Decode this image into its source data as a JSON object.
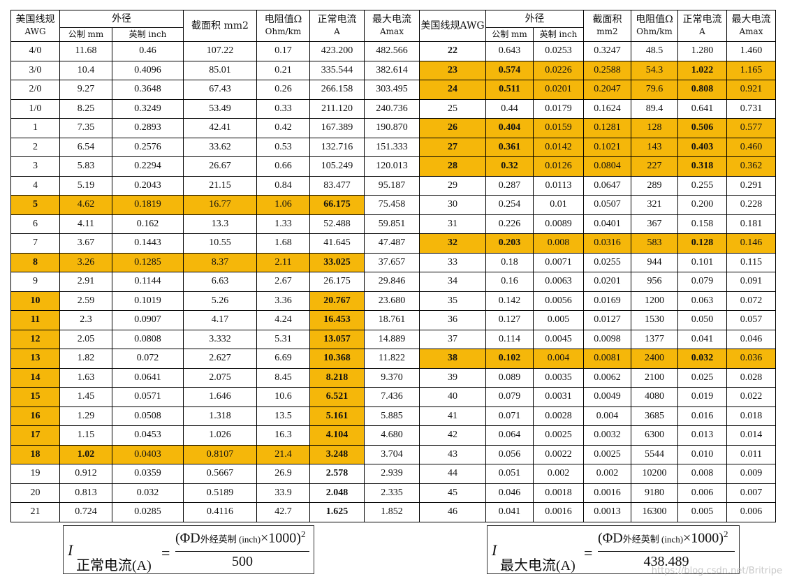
{
  "header": {
    "awg": [
      "美国线规",
      "AWG"
    ],
    "od": "外径",
    "metric": "公制 mm",
    "imperial": "英制 inch",
    "area": "截面积 mm2",
    "resistance": [
      "电阻值Ω",
      "Ohm/km"
    ],
    "current": [
      "正常电流",
      "A"
    ],
    "max": [
      "最大电流",
      "Amax"
    ],
    "awg_r": "美国线规AWG",
    "od_r": "外径",
    "metric_r": "公制 mm",
    "imperial_r": "英制 inch",
    "area_r": [
      "截面积",
      "mm2"
    ],
    "resistance_r": [
      "电阻值Ω",
      "Ohm/km"
    ],
    "current_r": [
      "正常电流",
      "A"
    ],
    "max_r": [
      "最大电流",
      "Amax"
    ]
  },
  "highlight_color": "#f5b70a",
  "table": {
    "rows": [
      [
        "4/0",
        "11.68",
        "0.46",
        "107.22",
        "0.17",
        "423.200",
        "482.566",
        {
          "text": "22",
          "bold": true
        },
        "0.643",
        "0.0253",
        "0.3247",
        "48.5",
        "1.280",
        "1.460"
      ],
      [
        "3/0",
        "10.4",
        "0.4096",
        "85.01",
        "0.21",
        "335.544",
        "382.614",
        {
          "text": "23",
          "bold": true,
          "highlight": true
        },
        {
          "text": "0.574",
          "bold": true,
          "highlight": true
        },
        {
          "text": "0.0226",
          "highlight": true
        },
        {
          "text": "0.2588",
          "highlight": true
        },
        {
          "text": "54.3",
          "highlight": true
        },
        {
          "text": "1.022",
          "bold": true,
          "highlight": true
        },
        {
          "text": "1.165",
          "highlight": true
        }
      ],
      [
        "2/0",
        "9.27",
        "0.3648",
        "67.43",
        "0.26",
        "266.158",
        "303.495",
        {
          "text": "24",
          "bold": true,
          "highlight": true
        },
        {
          "text": "0.511",
          "bold": true,
          "highlight": true
        },
        {
          "text": "0.0201",
          "highlight": true
        },
        {
          "text": "0.2047",
          "highlight": true
        },
        {
          "text": "79.6",
          "highlight": true
        },
        {
          "text": "0.808",
          "bold": true,
          "highlight": true
        },
        {
          "text": "0.921",
          "highlight": true
        }
      ],
      [
        "1/0",
        "8.25",
        "0.3249",
        "53.49",
        "0.33",
        "211.120",
        "240.736",
        "25",
        "0.44",
        "0.0179",
        "0.1624",
        "89.4",
        "0.641",
        "0.731"
      ],
      [
        "1",
        "7.35",
        "0.2893",
        "42.41",
        "0.42",
        "167.389",
        "190.870",
        {
          "text": "26",
          "bold": true,
          "highlight": true
        },
        {
          "text": "0.404",
          "bold": true,
          "highlight": true
        },
        {
          "text": "0.0159",
          "highlight": true
        },
        {
          "text": "0.1281",
          "highlight": true
        },
        {
          "text": "128",
          "highlight": true
        },
        {
          "text": "0.506",
          "bold": true,
          "highlight": true
        },
        {
          "text": "0.577",
          "highlight": true
        }
      ],
      [
        "2",
        "6.54",
        "0.2576",
        "33.62",
        "0.53",
        "132.716",
        "151.333",
        {
          "text": "27",
          "bold": true,
          "highlight": true
        },
        {
          "text": "0.361",
          "bold": true,
          "highlight": true
        },
        {
          "text": "0.0142",
          "highlight": true
        },
        {
          "text": "0.1021",
          "highlight": true
        },
        {
          "text": "143",
          "highlight": true
        },
        {
          "text": "0.403",
          "bold": true,
          "highlight": true
        },
        {
          "text": "0.460",
          "highlight": true
        }
      ],
      [
        "3",
        "5.83",
        "0.2294",
        "26.67",
        "0.66",
        "105.249",
        "120.013",
        {
          "text": "28",
          "bold": true,
          "highlight": true
        },
        {
          "text": "0.32",
          "bold": true,
          "highlight": true
        },
        {
          "text": "0.0126",
          "highlight": true
        },
        {
          "text": "0.0804",
          "highlight": true
        },
        {
          "text": "227",
          "highlight": true
        },
        {
          "text": "0.318",
          "bold": true,
          "highlight": true
        },
        {
          "text": "0.362",
          "highlight": true
        }
      ],
      [
        "4",
        "5.19",
        "0.2043",
        "21.15",
        "0.84",
        "83.477",
        "95.187",
        "29",
        "0.287",
        "0.0113",
        "0.0647",
        "289",
        "0.255",
        "0.291"
      ],
      [
        {
          "text": "5",
          "bold": true,
          "highlight": true
        },
        {
          "text": "4.62",
          "highlight": true
        },
        {
          "text": "0.1819",
          "highlight": true
        },
        {
          "text": "16.77",
          "highlight": true
        },
        {
          "text": "1.06",
          "highlight": true
        },
        {
          "text": "66.175",
          "bold": true,
          "highlight": true
        },
        "75.458",
        "30",
        "0.254",
        "0.01",
        "0.0507",
        "321",
        "0.200",
        "0.228"
      ],
      [
        "6",
        "4.11",
        "0.162",
        "13.3",
        "1.33",
        "52.488",
        "59.851",
        "31",
        "0.226",
        "0.0089",
        "0.0401",
        "367",
        "0.158",
        "0.181"
      ],
      [
        "7",
        "3.67",
        "0.1443",
        "10.55",
        "1.68",
        "41.645",
        "47.487",
        {
          "text": "32",
          "bold": true,
          "highlight": true
        },
        {
          "text": "0.203",
          "bold": true,
          "highlight": true
        },
        {
          "text": "0.008",
          "highlight": true
        },
        {
          "text": "0.0316",
          "highlight": true
        },
        {
          "text": "583",
          "highlight": true
        },
        {
          "text": "0.128",
          "bold": true,
          "highlight": true
        },
        {
          "text": "0.146",
          "highlight": true
        }
      ],
      [
        {
          "text": "8",
          "bold": true,
          "highlight": true
        },
        {
          "text": "3.26",
          "highlight": true
        },
        {
          "text": "0.1285",
          "highlight": true
        },
        {
          "text": "8.37",
          "highlight": true
        },
        {
          "text": "2.11",
          "highlight": true
        },
        {
          "text": "33.025",
          "bold": true,
          "highlight": true
        },
        "37.657",
        "33",
        "0.18",
        "0.0071",
        "0.0255",
        "944",
        "0.101",
        "0.115"
      ],
      [
        "9",
        "2.91",
        "0.1144",
        "6.63",
        "2.67",
        "26.175",
        "29.846",
        "34",
        "0.16",
        "0.0063",
        "0.0201",
        "956",
        "0.079",
        "0.091"
      ],
      [
        {
          "text": "10",
          "bold": true,
          "highlight": true
        },
        "2.59",
        "0.1019",
        "5.26",
        "3.36",
        {
          "text": "20.767",
          "bold": true,
          "highlight": true
        },
        "23.680",
        "35",
        "0.142",
        "0.0056",
        "0.0169",
        "1200",
        "0.063",
        "0.072"
      ],
      [
        {
          "text": "11",
          "bold": true,
          "highlight": true
        },
        "2.3",
        "0.0907",
        "4.17",
        "4.24",
        {
          "text": "16.453",
          "bold": true,
          "highlight": true
        },
        "18.761",
        "36",
        "0.127",
        "0.005",
        "0.0127",
        "1530",
        "0.050",
        "0.057"
      ],
      [
        {
          "text": "12",
          "bold": true,
          "highlight": true
        },
        "2.05",
        "0.0808",
        "3.332",
        "5.31",
        {
          "text": "13.057",
          "bold": true,
          "highlight": true
        },
        "14.889",
        "37",
        "0.114",
        "0.0045",
        "0.0098",
        "1377",
        "0.041",
        "0.046"
      ],
      [
        {
          "text": "13",
          "bold": true,
          "highlight": true
        },
        "1.82",
        "0.072",
        "2.627",
        "6.69",
        {
          "text": "10.368",
          "bold": true,
          "highlight": true
        },
        "11.822",
        {
          "text": "38",
          "bold": true,
          "highlight": true
        },
        {
          "text": "0.102",
          "bold": true,
          "highlight": true
        },
        {
          "text": "0.004",
          "highlight": true
        },
        {
          "text": "0.0081",
          "highlight": true
        },
        {
          "text": "2400",
          "highlight": true
        },
        {
          "text": "0.032",
          "bold": true,
          "highlight": true
        },
        {
          "text": "0.036",
          "highlight": true
        }
      ],
      [
        {
          "text": "14",
          "bold": true,
          "highlight": true
        },
        "1.63",
        "0.0641",
        "2.075",
        "8.45",
        {
          "text": "8.218",
          "bold": true,
          "highlight": true
        },
        "9.370",
        "39",
        "0.089",
        "0.0035",
        "0.0062",
        "2100",
        "0.025",
        "0.028"
      ],
      [
        {
          "text": "15",
          "bold": true,
          "highlight": true
        },
        "1.45",
        "0.0571",
        "1.646",
        "10.6",
        {
          "text": "6.521",
          "bold": true,
          "highlight": true
        },
        "7.436",
        "40",
        "0.079",
        "0.0031",
        "0.0049",
        "4080",
        "0.019",
        "0.022"
      ],
      [
        {
          "text": "16",
          "bold": true,
          "highlight": true
        },
        "1.29",
        "0.0508",
        "1.318",
        "13.5",
        {
          "text": "5.161",
          "bold": true,
          "highlight": true
        },
        "5.885",
        "41",
        "0.071",
        "0.0028",
        "0.004",
        "3685",
        "0.016",
        "0.018"
      ],
      [
        {
          "text": "17",
          "bold": true,
          "highlight": true
        },
        "1.15",
        "0.0453",
        "1.026",
        "16.3",
        {
          "text": "4.104",
          "bold": true,
          "highlight": true
        },
        "4.680",
        "42",
        "0.064",
        "0.0025",
        "0.0032",
        "6300",
        "0.013",
        "0.014"
      ],
      [
        {
          "text": "18",
          "bold": true,
          "highlight": true
        },
        {
          "text": "1.02",
          "bold": true,
          "highlight": true
        },
        {
          "text": "0.0403",
          "highlight": true
        },
        {
          "text": "0.8107",
          "highlight": true
        },
        {
          "text": "21.4",
          "highlight": true
        },
        {
          "text": "3.248",
          "bold": true,
          "highlight": true
        },
        "3.704",
        "43",
        "0.056",
        "0.0022",
        "0.0025",
        "5544",
        "0.010",
        "0.011"
      ],
      [
        "19",
        "0.912",
        "0.0359",
        "0.5667",
        "26.9",
        {
          "text": "2.578",
          "bold": true
        },
        "2.939",
        "44",
        "0.051",
        "0.002",
        "0.002",
        "10200",
        "0.008",
        "0.009"
      ],
      [
        "20",
        "0.813",
        "0.032",
        "0.5189",
        "33.9",
        {
          "text": "2.048",
          "bold": true
        },
        "2.335",
        "45",
        "0.046",
        "0.0018",
        "0.0016",
        "9180",
        "0.006",
        "0.007"
      ],
      [
        "21",
        "0.724",
        "0.0285",
        "0.4116",
        "42.7",
        {
          "text": "1.625",
          "bold": true
        },
        "1.852",
        "46",
        "0.041",
        "0.0016",
        "0.0013",
        "16300",
        "0.005",
        "0.006"
      ]
    ]
  },
  "formulas": [
    {
      "symbol": "I",
      "subscript": "正常电流(A)",
      "numerator_open": "(ΦD",
      "numerator_sub": "外经英制 (inch)",
      "numerator_close": "×1000)",
      "exponent": "2",
      "denominator": "500"
    },
    {
      "symbol": "I",
      "subscript": "最大电流(A)",
      "numerator_open": "(ΦD",
      "numerator_sub": "外经英制 (inch)",
      "numerator_close": "×1000)",
      "exponent": "2",
      "denominator": "438.489"
    }
  ],
  "watermark": "https://blog.csdn.net/Britripe"
}
